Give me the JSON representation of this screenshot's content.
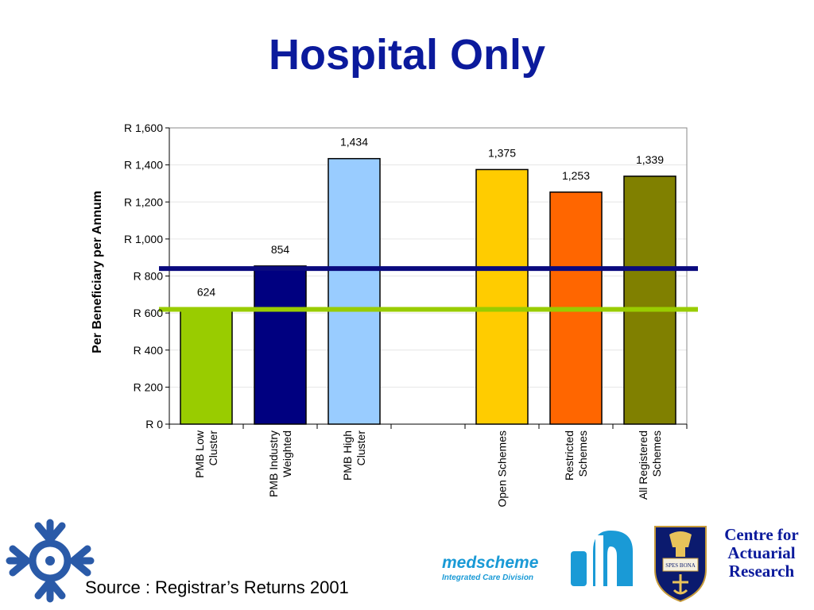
{
  "title": "Hospital Only",
  "source": "Source : Registrar’s Returns 2001",
  "logos": {
    "medscheme_name": "medscheme",
    "medscheme_tagline": "Integrated Care Division",
    "crest_motto": "SPES BONA",
    "car_line1": "Centre for",
    "car_line2": "Actuarial",
    "car_line3": "Research"
  },
  "colors": {
    "title": "#0b1a9c",
    "navy_line": "#0a0a7e",
    "green_line": "#99cc00"
  },
  "chart_data": {
    "type": "bar",
    "title": "",
    "xlabel": "",
    "ylabel": "Per Beneficiary per Annum",
    "ylim": [
      0,
      1600
    ],
    "yticks": [
      0,
      200,
      400,
      600,
      800,
      1000,
      1200,
      1400,
      1600
    ],
    "ytick_labels": [
      "R 0",
      "R 200",
      "R 400",
      "R 600",
      "R 800",
      "R 1,000",
      "R 1,200",
      "R 1,400",
      "R 1,600"
    ],
    "grid": true,
    "categories": [
      [
        "PMB Low",
        "Cluster"
      ],
      [
        "PMB Industry",
        "Weighted"
      ],
      [
        "PMB High",
        "Cluster"
      ],
      [
        ""
      ],
      [
        "Open Schemes"
      ],
      [
        "Restricted",
        "Schemes"
      ],
      [
        "All Registered",
        "Schemes"
      ]
    ],
    "values": [
      624,
      854,
      1434,
      null,
      1375,
      1253,
      1339
    ],
    "data_labels": [
      "624",
      "854",
      "1,434",
      "",
      "1,375",
      "1,253",
      "1,339"
    ],
    "bar_colors": [
      "#99cc00",
      "#000080",
      "#99ccff",
      "",
      "#ffcc00",
      "#ff6600",
      "#808000"
    ],
    "reference_lines": [
      {
        "value": 840,
        "color": "#0a0a7e"
      },
      {
        "value": 620,
        "color": "#99cc00"
      }
    ]
  }
}
